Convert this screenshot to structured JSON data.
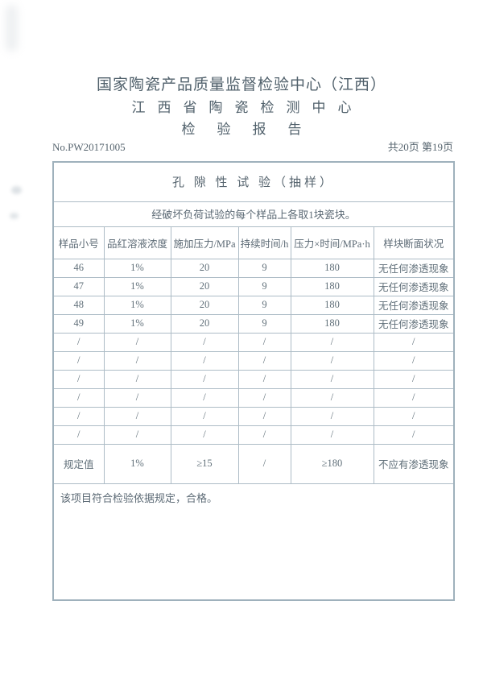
{
  "page": {
    "header": {
      "title_line1": "国家陶瓷产品质量监督检验中心（江西）",
      "title_line2": "江西省陶瓷检测中心",
      "title_line3": "检验报告",
      "report_no": "No.PW20171005",
      "page_info": "共20页 第19页"
    },
    "table": {
      "section_title": "孔 隙 性 试 验（抽样）",
      "sampling_note": "经破坏负荷试验的每个样品上各取1块瓷块。",
      "columns": [
        "样品小号",
        "品红溶液浓度",
        "施加压力/MPa",
        "持续时间/h",
        "压力×时间/MPa·h",
        "样块断面状况"
      ],
      "rows": [
        [
          "46",
          "1%",
          "20",
          "9",
          "180",
          "无任何渗透现象"
        ],
        [
          "47",
          "1%",
          "20",
          "9",
          "180",
          "无任何渗透现象"
        ],
        [
          "48",
          "1%",
          "20",
          "9",
          "180",
          "无任何渗透现象"
        ],
        [
          "49",
          "1%",
          "20",
          "9",
          "180",
          "无任何渗透现象"
        ],
        [
          "/",
          "/",
          "/",
          "/",
          "/",
          "/"
        ],
        [
          "/",
          "/",
          "/",
          "/",
          "/",
          "/"
        ],
        [
          "/",
          "/",
          "/",
          "/",
          "/",
          "/"
        ],
        [
          "/",
          "/",
          "/",
          "/",
          "/",
          "/"
        ],
        [
          "/",
          "/",
          "/",
          "/",
          "/",
          "/"
        ],
        [
          "/",
          "/",
          "/",
          "/",
          "/",
          "/"
        ]
      ],
      "spec_row": [
        "规定值",
        "1%",
        "≥15",
        "/",
        "≥180",
        "不应有渗透现象"
      ],
      "conclusion": "该项目符合检验依据规定，合格。"
    },
    "colors": {
      "text": "#5a6872",
      "table_border": "#a9b8c2"
    }
  }
}
